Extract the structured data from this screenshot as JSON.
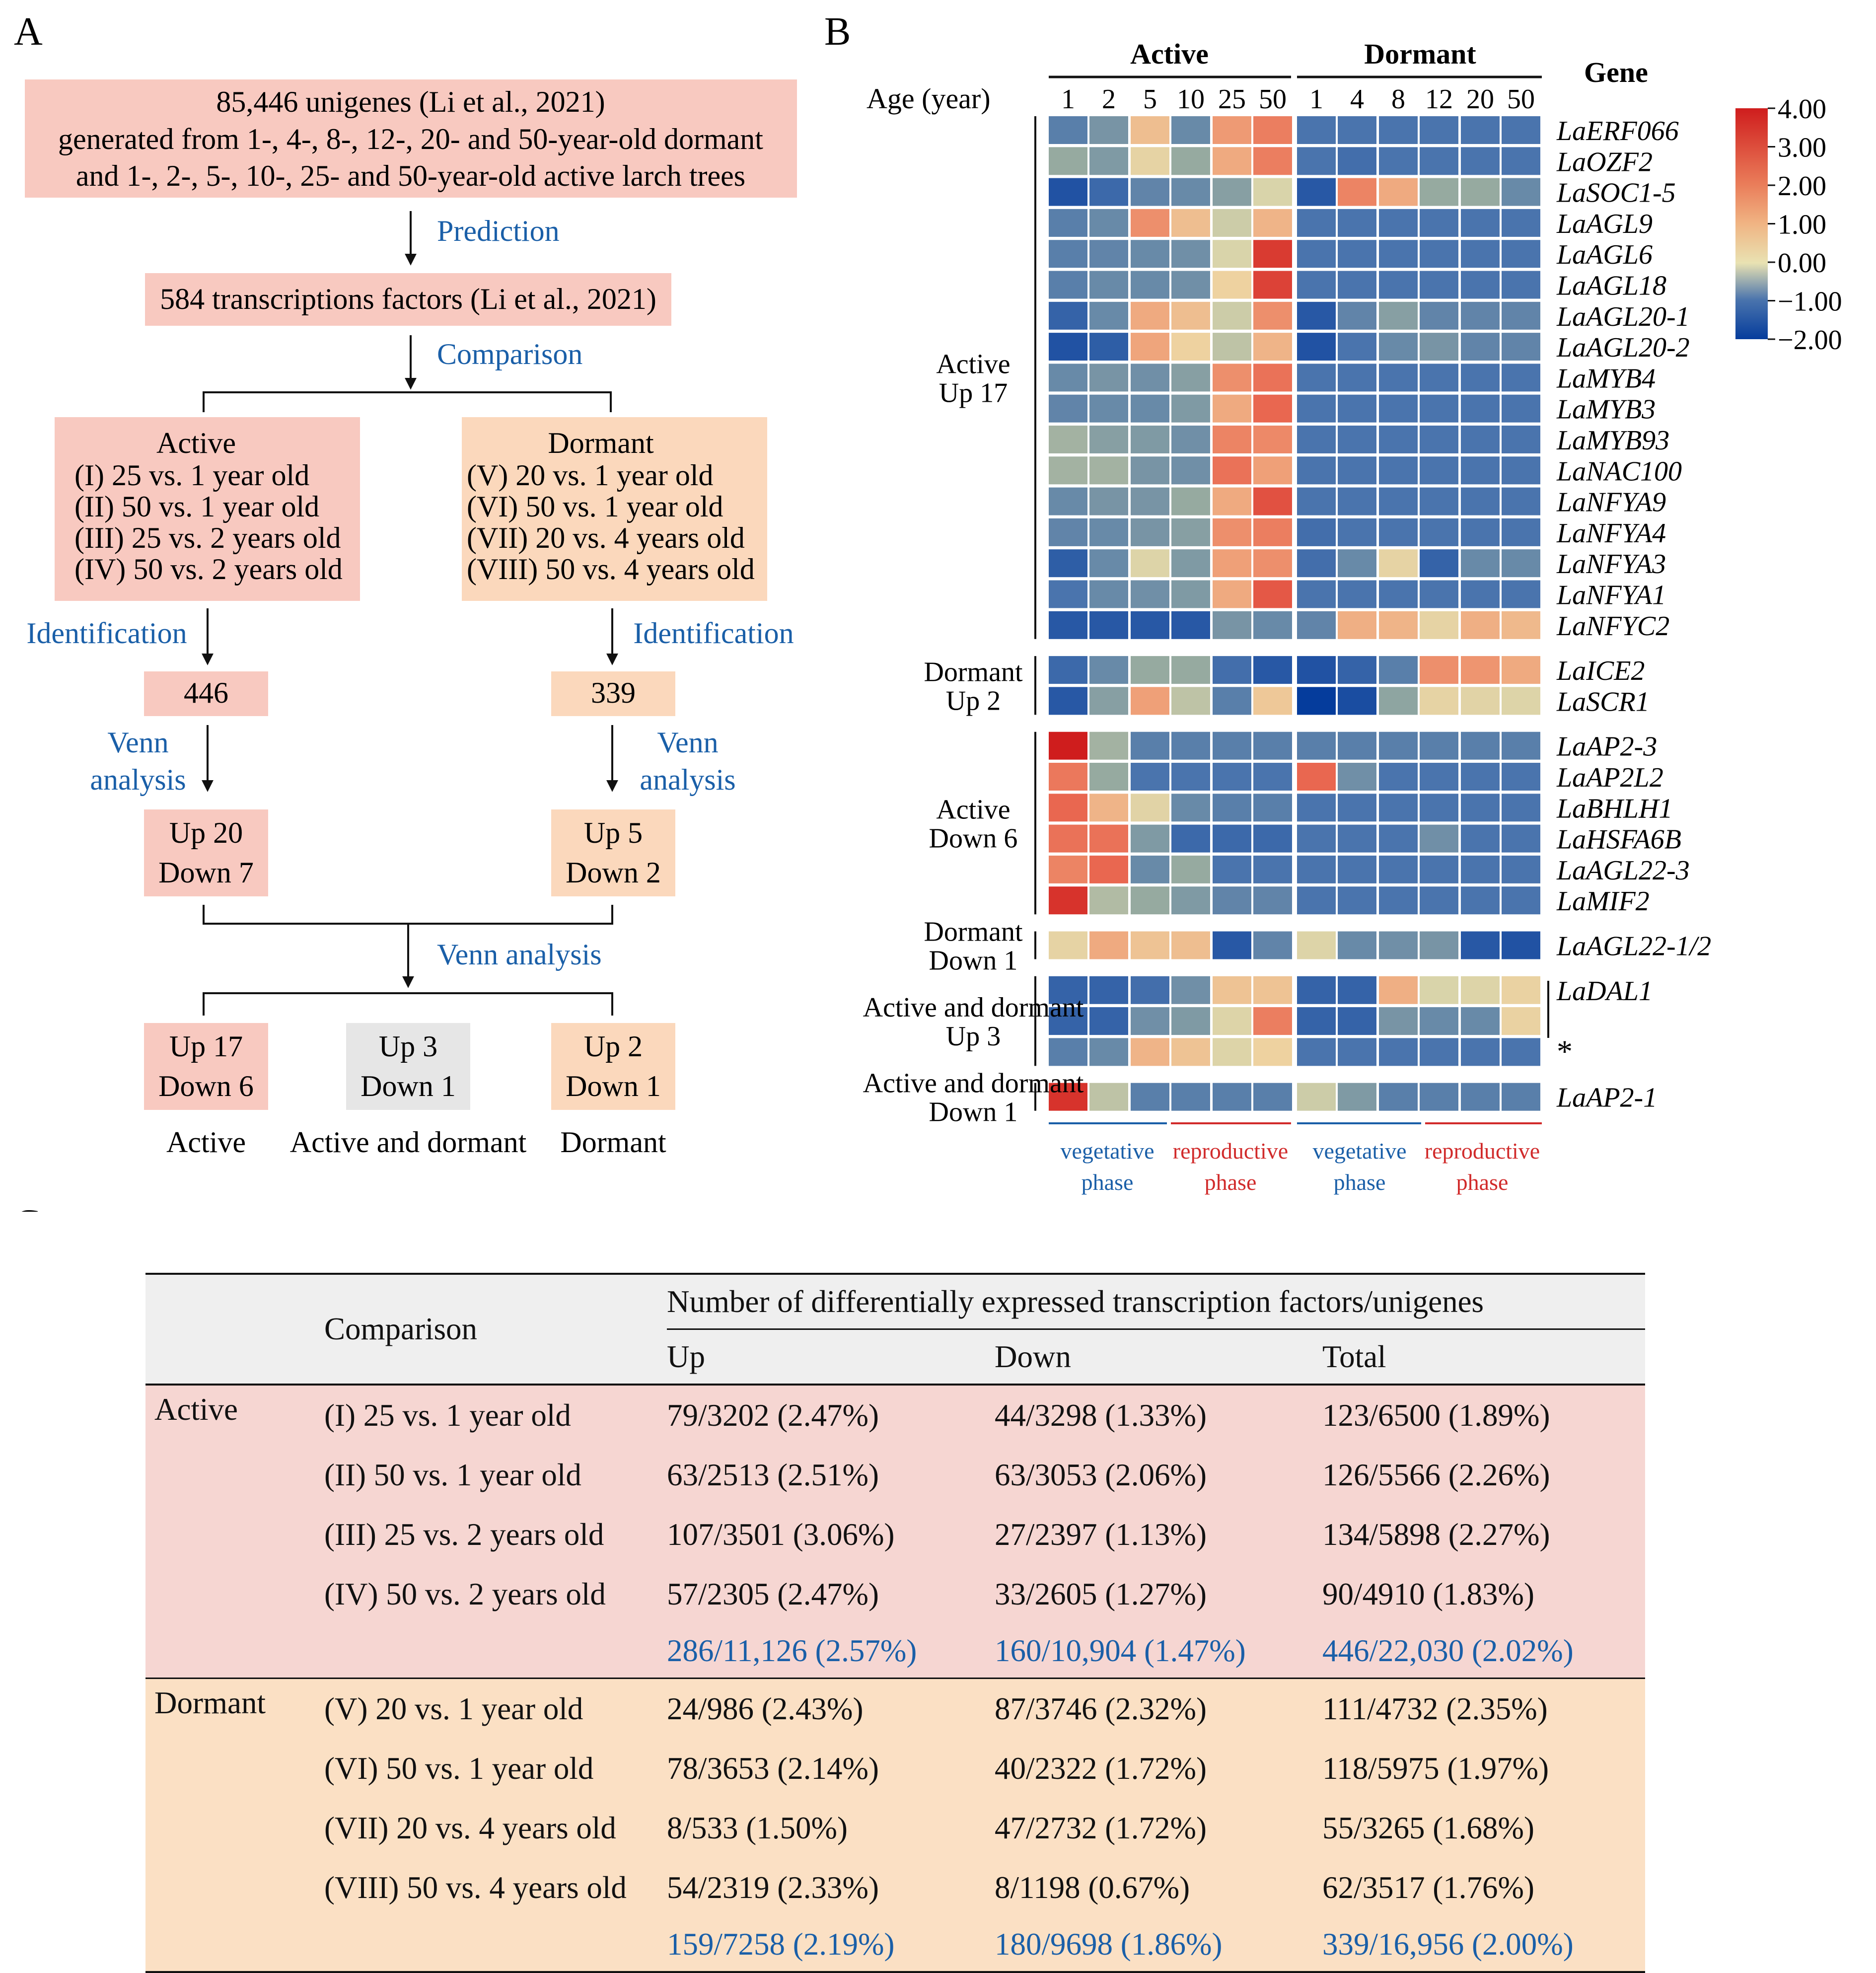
{
  "panel_labels": {
    "a": "A",
    "b": "B",
    "c": "C"
  },
  "flow": {
    "top_box_lines": [
      "85,446 unigenes (Li et al., 2021)",
      "generated from 1-, 4-, 8-, 12-, 20- and 50-year-old dormant",
      "and 1-, 2-, 5-, 10-, 25- and 50-year-old active larch trees"
    ],
    "prediction": "Prediction",
    "tf_box": "584 transcriptions factors (Li et al., 2021)",
    "comparison": "Comparison",
    "active_box": [
      "Active",
      "(I) 25 vs. 1 year old",
      "(II) 50 vs. 1 year old",
      "(III) 25 vs. 2 years old",
      "(IV) 50 vs. 2 years old"
    ],
    "dormant_box": [
      "Dormant",
      "(V) 20 vs. 1 year old",
      "(VI) 50 vs. 1 year old",
      "(VII) 20 vs. 4 years old",
      "(VIII) 50 vs. 4 years old"
    ],
    "identification": "Identification",
    "active_count": "446",
    "dormant_count": "339",
    "venn_1": "Venn",
    "venn_2": "analysis",
    "active_updown": [
      "Up 20",
      "Down 7"
    ],
    "dormant_updown": [
      "Up 5",
      "Down 2"
    ],
    "venn_analysis": "Venn analysis",
    "final_boxes": [
      {
        "lines": [
          "Up 17",
          "Down 6"
        ],
        "label": "Active"
      },
      {
        "lines": [
          "Up 3",
          "Down 1"
        ],
        "label": "Active and dormant"
      },
      {
        "lines": [
          "Up 2",
          "Down 1"
        ],
        "label": "Dormant"
      }
    ]
  },
  "heatmap": {
    "group_active": "Active",
    "group_dormant": "Dormant",
    "age_label": "Age (year)",
    "gene_header": "Gene",
    "active_ages": [
      "1",
      "2",
      "5",
      "10",
      "25",
      "50"
    ],
    "dormant_ages": [
      "1",
      "4",
      "8",
      "12",
      "20",
      "50"
    ],
    "color_scale": {
      "min": -2.0,
      "max": 4.0,
      "ticks": [
        "4.00",
        "3.00",
        "2.00",
        "1.00",
        "0.00",
        "−1.00",
        "−2.00"
      ]
    },
    "groups": [
      {
        "label": [
          "Active",
          "Up 17"
        ],
        "genes": [
          "LaERF066",
          "LaOZF2",
          "LaSOC1-5",
          "LaAGL9",
          "LaAGL6",
          "LaAGL18",
          "LaAGL20-1",
          "LaAGL20-2",
          "LaMYB4",
          "LaMYB3",
          "LaMYB93",
          "LaNAC100",
          "LaNFYA9",
          "LaNFYA4",
          "LaNFYA3",
          "LaNFYA1",
          "LaNFYC2"
        ]
      },
      {
        "label": [
          "Dormant",
          "Up 2"
        ],
        "genes": [
          "LaICE2",
          "LaSCR1"
        ]
      },
      {
        "label": [
          "Active",
          "Down 6"
        ],
        "genes": [
          "LaAP2-3",
          "LaAP2L2",
          "LaBHLH1",
          "LaHSFA6B",
          "LaAGL22-3",
          "LaMIF2"
        ]
      },
      {
        "label": [
          "Dormant",
          "Down 1"
        ],
        "genes": [
          "LaAGL22-1/2"
        ]
      },
      {
        "label": [
          "Active and dormant",
          "Up 3"
        ],
        "genes": [
          "LaDAL1",
          "",
          "*"
        ]
      },
      {
        "label": [
          "Active and dormant",
          "Down 1"
        ],
        "genes": [
          "LaAP2-1"
        ]
      }
    ],
    "values": [
      [
        -0.8,
        -0.4,
        1.4,
        -0.6,
        2.1,
        2.6,
        -1.0,
        -1.0,
        -1.0,
        -1.0,
        -1.0,
        -1.0
      ],
      [
        0.0,
        -0.3,
        0.8,
        0.0,
        1.8,
        2.6,
        -1.0,
        -1.1,
        -1.0,
        -1.0,
        -1.0,
        -1.0
      ],
      [
        -1.6,
        -1.2,
        -0.7,
        -0.6,
        -0.2,
        0.5,
        -1.5,
        2.5,
        1.8,
        0.0,
        0.0,
        -0.6
      ],
      [
        -0.8,
        -0.6,
        2.3,
        1.4,
        0.4,
        1.6,
        -1.0,
        -1.0,
        -1.0,
        -1.0,
        -1.0,
        -1.0
      ],
      [
        -0.8,
        -0.7,
        -0.6,
        -0.5,
        0.5,
        3.6,
        -1.0,
        -1.0,
        -1.0,
        -1.0,
        -1.0,
        -1.0
      ],
      [
        -0.8,
        -0.6,
        -0.6,
        -0.5,
        1.0,
        3.5,
        -1.0,
        -1.0,
        -1.0,
        -1.0,
        -1.0,
        -1.0
      ],
      [
        -1.3,
        -0.6,
        1.8,
        1.4,
        0.4,
        2.3,
        -1.5,
        -0.7,
        -0.2,
        -0.7,
        -0.7,
        -0.7
      ],
      [
        -1.6,
        -1.4,
        1.9,
        1.0,
        0.3,
        1.6,
        -1.6,
        -1.0,
        -0.6,
        -0.4,
        -0.7,
        -0.7
      ],
      [
        -0.6,
        -0.4,
        -0.5,
        -0.2,
        2.3,
        2.8,
        -1.0,
        -1.0,
        -1.0,
        -1.0,
        -1.0,
        -1.0
      ],
      [
        -0.7,
        -0.6,
        -0.6,
        -0.3,
        1.8,
        3.0,
        -1.0,
        -1.0,
        -1.0,
        -1.0,
        -1.0,
        -1.0
      ],
      [
        0.1,
        -0.2,
        -0.3,
        -0.5,
        2.5,
        2.4,
        -1.0,
        -1.0,
        -1.0,
        -1.0,
        -1.0,
        -1.0
      ],
      [
        0.1,
        0.1,
        -0.4,
        -0.5,
        2.8,
        2.0,
        -1.0,
        -1.0,
        -1.0,
        -1.0,
        -1.0,
        -1.0
      ],
      [
        -0.6,
        -0.4,
        -0.4,
        0.0,
        1.8,
        3.3,
        -1.0,
        -1.0,
        -1.0,
        -1.0,
        -1.0,
        -1.0
      ],
      [
        -0.7,
        -0.6,
        -0.4,
        -0.2,
        2.3,
        2.6,
        -1.1,
        -1.0,
        -1.0,
        -1.0,
        -1.0,
        -1.0
      ],
      [
        -1.4,
        -0.6,
        0.6,
        -0.3,
        2.0,
        2.3,
        -1.1,
        -0.6,
        0.8,
        -1.3,
        -0.6,
        -0.6
      ],
      [
        -1.0,
        -0.6,
        -0.5,
        -0.3,
        1.8,
        3.2,
        -1.0,
        -1.0,
        -1.0,
        -1.0,
        -1.0,
        -1.0
      ],
      [
        -1.5,
        -1.5,
        -1.5,
        -1.5,
        -0.4,
        -0.6,
        -0.7,
        1.7,
        1.6,
        0.8,
        1.7,
        1.5
      ],
      [
        -1.2,
        -0.6,
        0.0,
        0.0,
        -1.1,
        -1.5,
        -1.6,
        -1.3,
        -0.8,
        2.3,
        2.2,
        1.8
      ],
      [
        -1.5,
        -0.2,
        2.0,
        0.3,
        -0.8,
        1.2,
        -2.0,
        -1.7,
        -0.1,
        0.8,
        0.7,
        0.6
      ],
      [
        4.0,
        0.1,
        -0.8,
        -0.8,
        -0.8,
        -0.8,
        -0.8,
        -0.8,
        -0.8,
        -0.8,
        -0.8,
        -0.8
      ],
      [
        2.7,
        0.0,
        -1.0,
        -1.0,
        -1.0,
        -1.0,
        3.0,
        -0.5,
        -1.0,
        -1.0,
        -1.0,
        -1.0
      ],
      [
        3.0,
        1.6,
        0.7,
        -0.6,
        -0.8,
        -0.8,
        -1.0,
        -1.0,
        -1.0,
        -1.0,
        -1.0,
        -1.0
      ],
      [
        2.8,
        2.8,
        -0.3,
        -1.2,
        -1.2,
        -1.2,
        -1.0,
        -1.0,
        -1.0,
        -0.5,
        -1.0,
        -1.0
      ],
      [
        2.5,
        3.0,
        -0.6,
        0.0,
        -1.0,
        -1.0,
        -1.0,
        -1.0,
        -1.0,
        -1.0,
        -1.0,
        -1.0
      ],
      [
        3.7,
        0.2,
        0.0,
        -0.3,
        -0.7,
        -0.7,
        -1.0,
        -1.0,
        -1.0,
        -1.0,
        -1.0,
        -1.0
      ],
      [
        0.8,
        1.8,
        1.3,
        1.4,
        -1.5,
        -0.7,
        0.6,
        -0.6,
        -0.5,
        -0.4,
        -1.5,
        -1.6
      ],
      [
        -1.3,
        -1.3,
        -1.1,
        -0.5,
        1.3,
        1.3,
        -1.3,
        -1.3,
        1.7,
        0.5,
        0.6,
        0.9
      ],
      [
        -1.3,
        -1.3,
        -0.5,
        -0.3,
        0.6,
        2.6,
        -1.3,
        -1.3,
        -0.4,
        -0.6,
        -0.6,
        0.9
      ],
      [
        -0.8,
        -0.6,
        1.6,
        1.3,
        0.6,
        1.0,
        -1.0,
        -1.0,
        -1.0,
        -1.0,
        -1.0,
        -1.0
      ],
      [
        3.7,
        0.3,
        -0.8,
        -0.8,
        -0.8,
        -0.8,
        0.4,
        -0.3,
        -0.8,
        -0.8,
        -0.8,
        -0.8
      ]
    ],
    "phase_labels": {
      "vegetative": [
        "vegetative",
        "phase"
      ],
      "reproductive": [
        "reproductive",
        "phase"
      ]
    },
    "colors": {
      "vegetative": "#1a5fa8",
      "reproductive": "#d12b2b"
    }
  },
  "table": {
    "comparison_header": "Comparison",
    "main_header": "Number of differentially expressed transcription factors/unigenes",
    "sub_headers": [
      "Up",
      "Down",
      "Total"
    ],
    "sections": [
      {
        "name": "Active",
        "rows": [
          [
            "(I) 25 vs. 1 year old",
            "79/3202 (2.47%)",
            "44/3298 (1.33%)",
            "123/6500 (1.89%)"
          ],
          [
            "(II) 50 vs. 1 year old",
            "63/2513 (2.51%)",
            "63/3053 (2.06%)",
            "126/5566 (2.26%)"
          ],
          [
            "(III) 25 vs. 2 years old",
            "107/3501 (3.06%)",
            "27/2397 (1.13%)",
            "134/5898 (2.27%)"
          ],
          [
            "(IV) 50 vs. 2 years old",
            "57/2305 (2.47%)",
            "33/2605 (1.27%)",
            "90/4910 (1.83%)"
          ]
        ],
        "summary": [
          "286/11,126 (2.57%)",
          "160/10,904 (1.47%)",
          "446/22,030 (2.02%)"
        ]
      },
      {
        "name": "Dormant",
        "rows": [
          [
            "(V) 20 vs. 1 year old",
            "24/986 (2.43%)",
            "87/3746 (2.32%)",
            "111/4732 (2.35%)"
          ],
          [
            "(VI) 50 vs. 1 year old",
            "78/3653 (2.14%)",
            "40/2322 (1.72%)",
            "118/5975 (1.97%)"
          ],
          [
            "(VII) 20 vs. 4 years old",
            "8/533 (1.50%)",
            "47/2732 (1.72%)",
            "55/3265 (1.68%)"
          ],
          [
            "(VIII) 50 vs. 4 years old",
            "54/2319 (2.33%)",
            "8/1198 (0.67%)",
            "62/3517 (1.76%)"
          ]
        ],
        "summary": [
          "159/7258 (2.19%)",
          "180/9698 (1.86%)",
          "339/16,956 (2.00%)"
        ]
      }
    ]
  }
}
